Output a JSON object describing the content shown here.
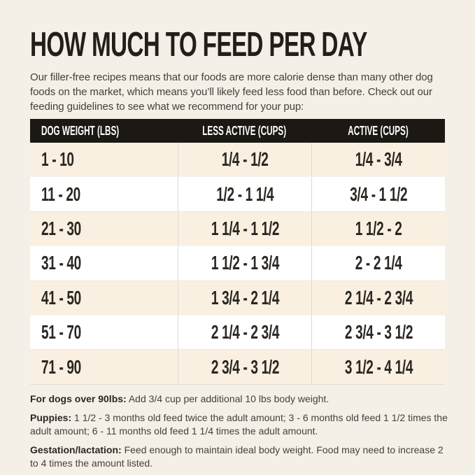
{
  "colors": {
    "page_background": "#f4f0e7",
    "table_header_background": "#1c1813",
    "table_header_text": "#ffffff",
    "row_cream": "#f9f0e1",
    "row_white": "#ffffff",
    "text_dark": "#221f1a"
  },
  "header": {
    "title": "HOW MUCH TO FEED PER DAY",
    "intro": "Our filler-free recipes means that our foods are more calorie dense than many other dog\nfoods on the market, which means you’ll likely feed less food than before. Check out our\nfeeding guidelines to see what we recommend for your pup:"
  },
  "table": {
    "columns": [
      "DOG WEIGHT (LBS)",
      "LESS ACTIVE (CUPS)",
      "ACTIVE (CUPS)"
    ],
    "rows": [
      [
        "1 - 10",
        "1/4 - 1/2",
        "1/4 - 3/4"
      ],
      [
        "11 - 20",
        "1/2 - 1 1/4",
        "3/4 - 1 1/2"
      ],
      [
        "21 - 30",
        "1 1/4 - 1 1/2",
        "1 1/2 - 2"
      ],
      [
        "31 - 40",
        "1 1/2 - 1 3/4",
        "2 - 2 1/4"
      ],
      [
        "41 - 50",
        "1 3/4 - 2 1/4",
        "2 1/4 - 2 3/4"
      ],
      [
        "51 - 70",
        "2 1/4 - 2 3/4",
        "2 3/4 - 3 1/2"
      ],
      [
        "71 - 90",
        "2 3/4 - 3 1/2",
        "3 1/2 - 4 1/4"
      ]
    ]
  },
  "notes": [
    {
      "label": "For dogs over 90lbs:",
      "text": "Add 3/4 cup per additional 10 lbs body weight."
    },
    {
      "label": "Puppies:",
      "text": "1 1/2 - 3 months old feed twice the adult amount; 3 - 6 months old feed 1 1/2 times the\nadult amount; 6 - 11 months old feed 1 1/4 times the adult amount."
    },
    {
      "label": "Gestation/lactation:",
      "text": "Feed enough to maintain ideal body weight. Food may need to increase 2\nto 4 times the amount listed."
    }
  ]
}
